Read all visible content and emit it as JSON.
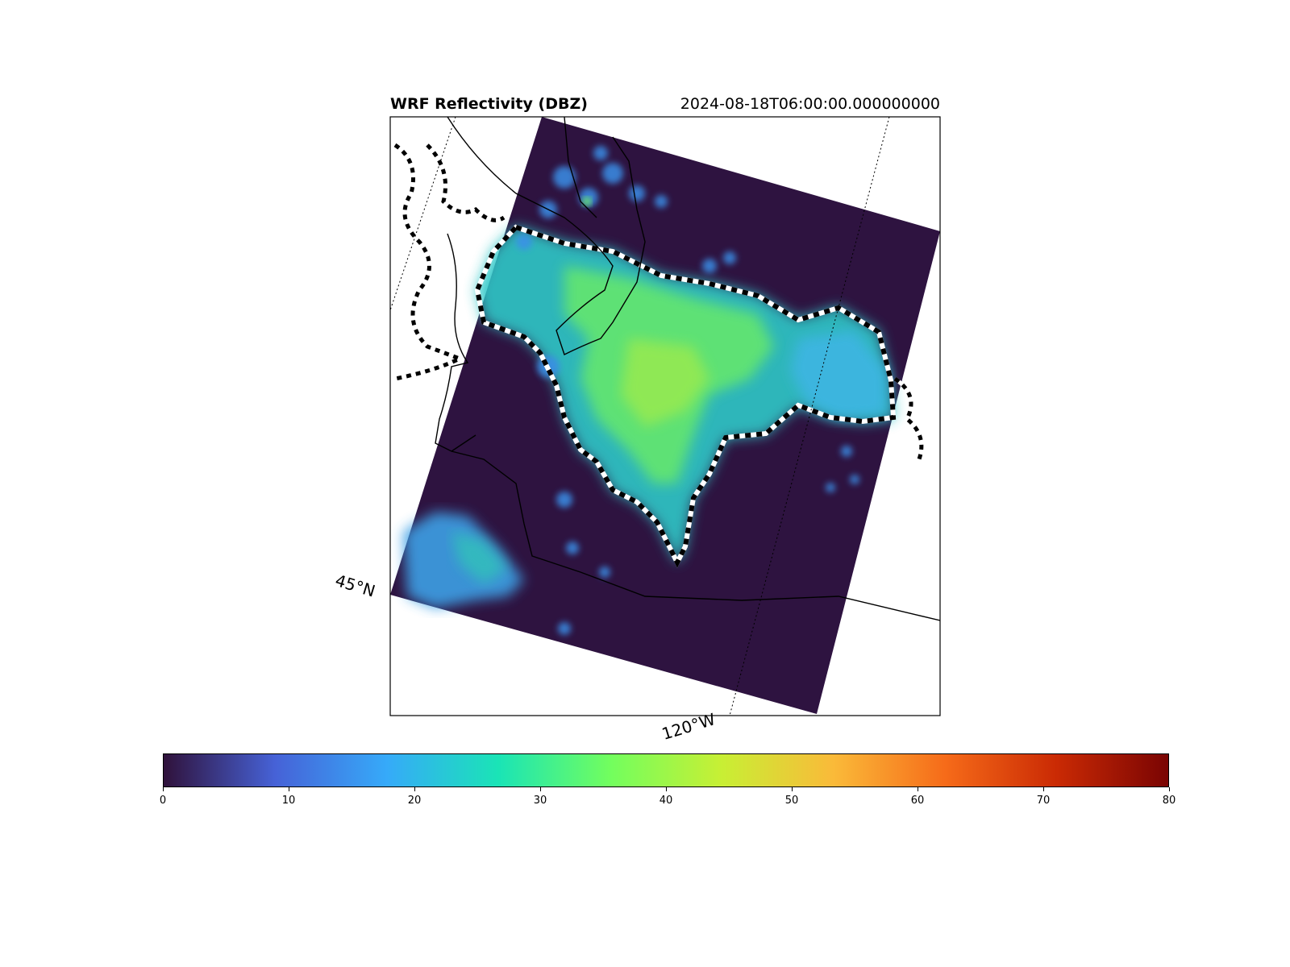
{
  "map": {
    "title": "WRF Reflectivity (DBZ)",
    "timestamp": "2024-08-18T06:00:00.000000000",
    "lat_label": "45°N",
    "lon_label": "120°W",
    "field_background_color": "#2e1340",
    "coastline_color": "#000000",
    "contour_style": "white-black-dashed"
  },
  "colorbar": {
    "colormap": "turbo",
    "min": 0,
    "max": 80,
    "ticks": [
      0,
      10,
      20,
      30,
      40,
      50,
      60,
      70,
      80
    ],
    "tick_labels": [
      "0",
      "10",
      "20",
      "30",
      "40",
      "50",
      "60",
      "70",
      "80"
    ],
    "stops": [
      "#30123b",
      "#4662d7",
      "#36aaf9",
      "#1ae4b6",
      "#72fe5e",
      "#c8ef34",
      "#faba39",
      "#f66b19",
      "#ca2a04",
      "#7a0403"
    ]
  }
}
